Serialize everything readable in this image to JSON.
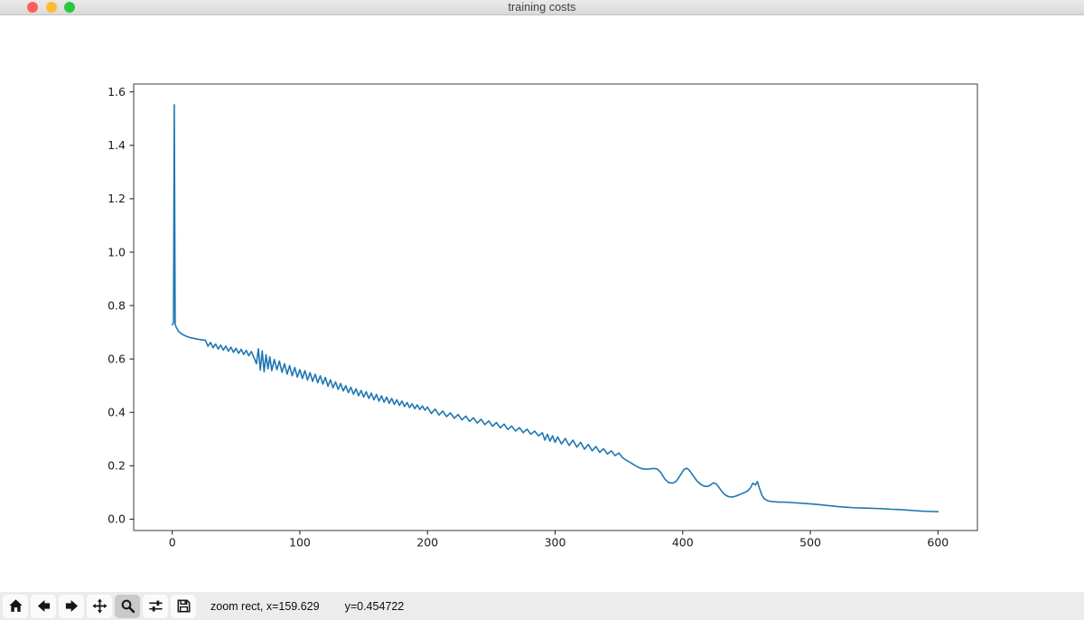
{
  "window": {
    "title": "training costs",
    "traffic_lights": [
      {
        "name": "close",
        "color": "#ff5f57"
      },
      {
        "name": "minimize",
        "color": "#febc2e"
      },
      {
        "name": "fullscreen",
        "color": "#28c840"
      }
    ]
  },
  "toolbar": {
    "buttons": [
      {
        "id": "home",
        "icon": "home-icon",
        "active": false
      },
      {
        "id": "back",
        "icon": "back-arrow-icon",
        "active": false
      },
      {
        "id": "forward",
        "icon": "forward-arrow-icon",
        "active": false
      },
      {
        "id": "pan",
        "icon": "pan-arrows-icon",
        "active": false
      },
      {
        "id": "zoom",
        "icon": "zoom-magnifier-icon",
        "active": true
      },
      {
        "id": "subplots",
        "icon": "subplots-sliders-icon",
        "active": false
      },
      {
        "id": "save",
        "icon": "save-floppy-icon",
        "active": false
      }
    ],
    "status": {
      "mode_and_x": "zoom rect, x=159.629",
      "y": "y=0.454722"
    }
  },
  "colors": {
    "line": "#1f77b4",
    "axes_frame": "#3c3c3c",
    "tick_text": "#1a1a1a",
    "toolbar_bg": "#ececec",
    "button_active_bg": "#c9c9c9"
  },
  "chart_data": {
    "type": "line",
    "title": "",
    "xlabel": "",
    "ylabel": "",
    "grid": false,
    "legend": null,
    "xlim": [
      -30.2,
      630.9
    ],
    "ylim": [
      -0.0425,
      1.6295
    ],
    "xticks": {
      "values": [
        0,
        100,
        200,
        300,
        400,
        500,
        600
      ],
      "labels": [
        "0",
        "100",
        "200",
        "300",
        "400",
        "500",
        "600"
      ]
    },
    "yticks": {
      "values": [
        0.0,
        0.2,
        0.4,
        0.6,
        0.8,
        1.0,
        1.2,
        1.4,
        1.6
      ],
      "labels": [
        "0.0",
        "0.2",
        "0.4",
        "0.6",
        "0.8",
        "1.0",
        "1.2",
        "1.4",
        "1.6"
      ]
    },
    "series": [
      {
        "name": "training cost",
        "color": "#1f77b4",
        "points": [
          [
            0,
            0.728
          ],
          [
            1,
            0.735
          ],
          [
            1.6,
            1.552
          ],
          [
            2.3,
            0.73
          ],
          [
            3,
            0.72
          ],
          [
            5,
            0.703
          ],
          [
            8,
            0.692
          ],
          [
            11,
            0.685
          ],
          [
            14,
            0.68
          ],
          [
            17,
            0.677
          ],
          [
            20,
            0.674
          ],
          [
            23,
            0.672
          ],
          [
            26,
            0.67
          ],
          [
            28,
            0.648
          ],
          [
            30,
            0.662
          ],
          [
            32,
            0.642
          ],
          [
            34,
            0.656
          ],
          [
            36,
            0.637
          ],
          [
            38,
            0.652
          ],
          [
            40,
            0.633
          ],
          [
            42,
            0.648
          ],
          [
            44,
            0.629
          ],
          [
            46,
            0.644
          ],
          [
            48,
            0.625
          ],
          [
            50,
            0.64
          ],
          [
            52,
            0.621
          ],
          [
            54,
            0.636
          ],
          [
            56,
            0.617
          ],
          [
            58,
            0.632
          ],
          [
            60,
            0.612
          ],
          [
            62,
            0.628
          ],
          [
            64,
            0.606
          ],
          [
            66,
            0.582
          ],
          [
            67.5,
            0.638
          ],
          [
            69,
            0.558
          ],
          [
            70.5,
            0.63
          ],
          [
            72,
            0.552
          ],
          [
            73.5,
            0.616
          ],
          [
            75,
            0.563
          ],
          [
            76.5,
            0.608
          ],
          [
            78,
            0.556
          ],
          [
            80,
            0.598
          ],
          [
            82,
            0.56
          ],
          [
            84,
            0.592
          ],
          [
            86,
            0.55
          ],
          [
            88,
            0.582
          ],
          [
            90,
            0.543
          ],
          [
            92,
            0.575
          ],
          [
            94,
            0.537
          ],
          [
            96,
            0.568
          ],
          [
            98,
            0.532
          ],
          [
            100,
            0.56
          ],
          [
            102,
            0.527
          ],
          [
            104,
            0.556
          ],
          [
            106,
            0.521
          ],
          [
            108,
            0.549
          ],
          [
            110,
            0.516
          ],
          [
            112,
            0.543
          ],
          [
            114,
            0.511
          ],
          [
            116,
            0.537
          ],
          [
            118,
            0.506
          ],
          [
            120,
            0.531
          ],
          [
            122,
            0.498
          ],
          [
            124,
            0.522
          ],
          [
            126,
            0.492
          ],
          [
            128,
            0.514
          ],
          [
            130,
            0.486
          ],
          [
            132,
            0.508
          ],
          [
            134,
            0.48
          ],
          [
            136,
            0.5
          ],
          [
            138,
            0.474
          ],
          [
            140,
            0.494
          ],
          [
            142,
            0.468
          ],
          [
            144,
            0.488
          ],
          [
            146,
            0.462
          ],
          [
            148,
            0.482
          ],
          [
            150,
            0.457
          ],
          [
            152,
            0.477
          ],
          [
            154,
            0.452
          ],
          [
            156,
            0.472
          ],
          [
            158,
            0.447
          ],
          [
            160,
            0.467
          ],
          [
            162,
            0.442
          ],
          [
            164,
            0.462
          ],
          [
            166,
            0.438
          ],
          [
            168,
            0.457
          ],
          [
            170,
            0.434
          ],
          [
            172,
            0.452
          ],
          [
            174,
            0.43
          ],
          [
            176,
            0.447
          ],
          [
            178,
            0.426
          ],
          [
            180,
            0.442
          ],
          [
            182,
            0.422
          ],
          [
            184,
            0.437
          ],
          [
            186,
            0.418
          ],
          [
            188,
            0.432
          ],
          [
            190,
            0.414
          ],
          [
            192,
            0.428
          ],
          [
            194,
            0.411
          ],
          [
            196,
            0.424
          ],
          [
            198,
            0.408
          ],
          [
            200,
            0.42
          ],
          [
            203,
            0.396
          ],
          [
            206,
            0.412
          ],
          [
            209,
            0.39
          ],
          [
            212,
            0.405
          ],
          [
            215,
            0.384
          ],
          [
            218,
            0.398
          ],
          [
            221,
            0.378
          ],
          [
            224,
            0.392
          ],
          [
            227,
            0.372
          ],
          [
            230,
            0.386
          ],
          [
            233,
            0.366
          ],
          [
            236,
            0.38
          ],
          [
            239,
            0.36
          ],
          [
            242,
            0.374
          ],
          [
            245,
            0.354
          ],
          [
            248,
            0.368
          ],
          [
            251,
            0.348
          ],
          [
            254,
            0.362
          ],
          [
            257,
            0.342
          ],
          [
            260,
            0.356
          ],
          [
            263,
            0.336
          ],
          [
            266,
            0.349
          ],
          [
            269,
            0.33
          ],
          [
            272,
            0.343
          ],
          [
            275,
            0.324
          ],
          [
            278,
            0.337
          ],
          [
            281,
            0.318
          ],
          [
            284,
            0.33
          ],
          [
            287,
            0.312
          ],
          [
            290,
            0.324
          ],
          [
            292,
            0.296
          ],
          [
            294,
            0.318
          ],
          [
            296,
            0.292
          ],
          [
            298,
            0.312
          ],
          [
            300,
            0.288
          ],
          [
            302,
            0.308
          ],
          [
            305,
            0.282
          ],
          [
            308,
            0.302
          ],
          [
            311,
            0.276
          ],
          [
            314,
            0.296
          ],
          [
            317,
            0.27
          ],
          [
            320,
            0.288
          ],
          [
            323,
            0.262
          ],
          [
            326,
            0.28
          ],
          [
            329,
            0.256
          ],
          [
            332,
            0.272
          ],
          [
            335,
            0.25
          ],
          [
            338,
            0.264
          ],
          [
            341,
            0.244
          ],
          [
            344,
            0.256
          ],
          [
            347,
            0.238
          ],
          [
            350,
            0.248
          ],
          [
            353,
            0.23
          ],
          [
            356,
            0.22
          ],
          [
            359,
            0.212
          ],
          [
            362,
            0.203
          ],
          [
            365,
            0.195
          ],
          [
            368,
            0.189
          ],
          [
            371,
            0.187
          ],
          [
            374,
            0.188
          ],
          [
            377,
            0.19
          ],
          [
            380,
            0.188
          ],
          [
            383,
            0.174
          ],
          [
            386,
            0.15
          ],
          [
            389,
            0.137
          ],
          [
            392,
            0.135
          ],
          [
            395,
            0.142
          ],
          [
            398,
            0.164
          ],
          [
            401,
            0.186
          ],
          [
            403,
            0.191
          ],
          [
            405,
            0.184
          ],
          [
            408,
            0.164
          ],
          [
            411,
            0.144
          ],
          [
            414,
            0.131
          ],
          [
            417,
            0.123
          ],
          [
            420,
            0.123
          ],
          [
            422,
            0.129
          ],
          [
            424,
            0.136
          ],
          [
            426,
            0.133
          ],
          [
            428,
            0.122
          ],
          [
            430,
            0.108
          ],
          [
            433,
            0.092
          ],
          [
            436,
            0.084
          ],
          [
            439,
            0.083
          ],
          [
            442,
            0.087
          ],
          [
            445,
            0.093
          ],
          [
            448,
            0.099
          ],
          [
            451,
            0.106
          ],
          [
            453,
            0.117
          ],
          [
            455,
            0.135
          ],
          [
            457,
            0.128
          ],
          [
            458.5,
            0.141
          ],
          [
            460,
            0.118
          ],
          [
            462,
            0.09
          ],
          [
            464,
            0.076
          ],
          [
            467,
            0.068
          ],
          [
            470,
            0.066
          ],
          [
            475,
            0.064
          ],
          [
            480,
            0.064
          ],
          [
            486,
            0.062
          ],
          [
            492,
            0.06
          ],
          [
            498,
            0.058
          ],
          [
            504,
            0.056
          ],
          [
            510,
            0.053
          ],
          [
            516,
            0.05
          ],
          [
            522,
            0.047
          ],
          [
            528,
            0.045
          ],
          [
            534,
            0.043
          ],
          [
            540,
            0.042
          ],
          [
            546,
            0.041
          ],
          [
            552,
            0.04
          ],
          [
            558,
            0.039
          ],
          [
            564,
            0.037
          ],
          [
            570,
            0.036
          ],
          [
            576,
            0.034
          ],
          [
            582,
            0.032
          ],
          [
            588,
            0.03
          ],
          [
            594,
            0.029
          ],
          [
            600,
            0.028
          ]
        ]
      }
    ]
  }
}
